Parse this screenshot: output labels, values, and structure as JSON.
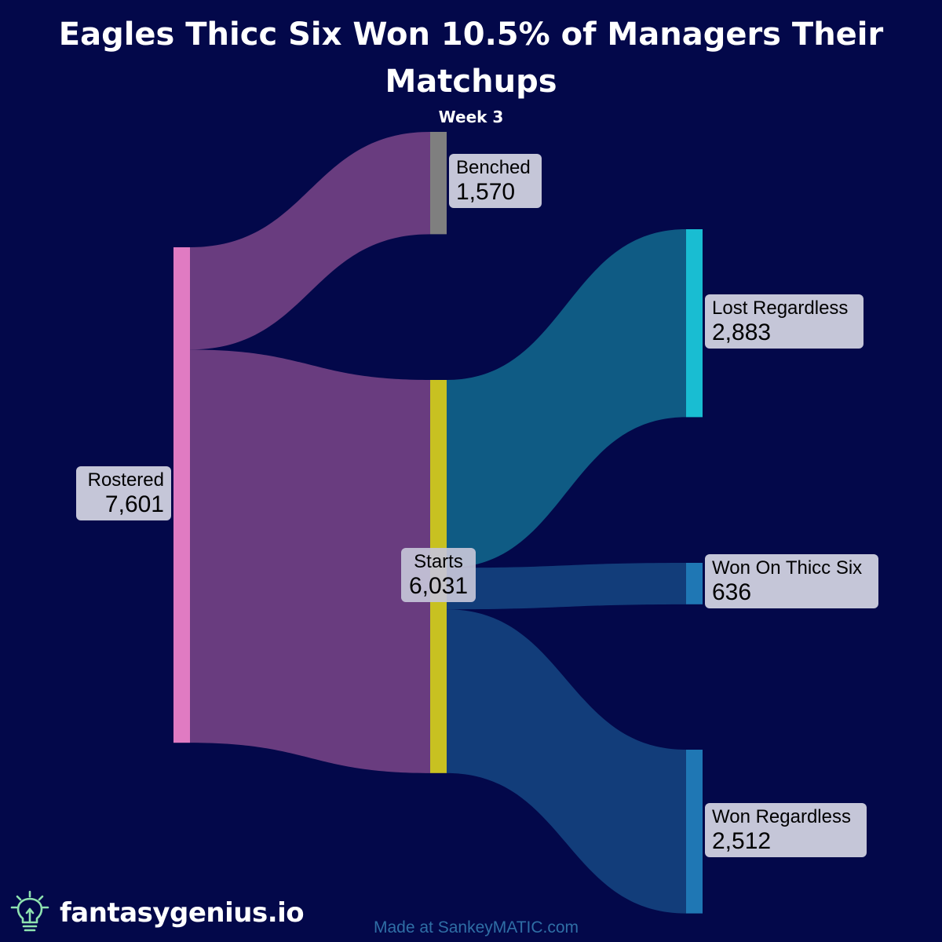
{
  "header": {
    "title_line1": "Eagles Thicc Six Won 10.5% of Managers Their",
    "title_line2": "Matchups",
    "subtitle": "Week 3"
  },
  "chart_data": {
    "type": "sankey",
    "nodes": [
      {
        "id": "rostered",
        "name": "Rostered",
        "value": "7,601",
        "color": "#e07bc2"
      },
      {
        "id": "benched",
        "name": "Benched",
        "value": "1,570",
        "color": "#7f7f7f"
      },
      {
        "id": "starts",
        "name": "Starts",
        "value": "6,031",
        "color": "#c8c121"
      },
      {
        "id": "lost",
        "name": "Lost Regardless",
        "value": "2,883",
        "color": "#19bdd2"
      },
      {
        "id": "wonthicc",
        "name": "Won On Thicc Six",
        "value": "636",
        "color": "#1f77b4"
      },
      {
        "id": "wonreg",
        "name": "Won Regardless",
        "value": "2,512",
        "color": "#1f77b4"
      }
    ],
    "links": [
      {
        "source": "Rostered",
        "target": "Benched",
        "value": 1570,
        "color": "#693c7f"
      },
      {
        "source": "Rostered",
        "target": "Starts",
        "value": 6031,
        "color": "#693c7f"
      },
      {
        "source": "Starts",
        "target": "Lost Regardless",
        "value": 2883,
        "color": "#0f5b84"
      },
      {
        "source": "Starts",
        "target": "Won On Thicc Six",
        "value": 636,
        "color": "#123d7a"
      },
      {
        "source": "Starts",
        "target": "Won Regardless",
        "value": 2512,
        "color": "#123d7a"
      }
    ]
  },
  "footer": {
    "credit": "Made at SankeyMATIC.com",
    "brand": "fantasygenius.io",
    "brand_icon": "lightbulb-icon",
    "brand_color": "#8fe3b0"
  }
}
